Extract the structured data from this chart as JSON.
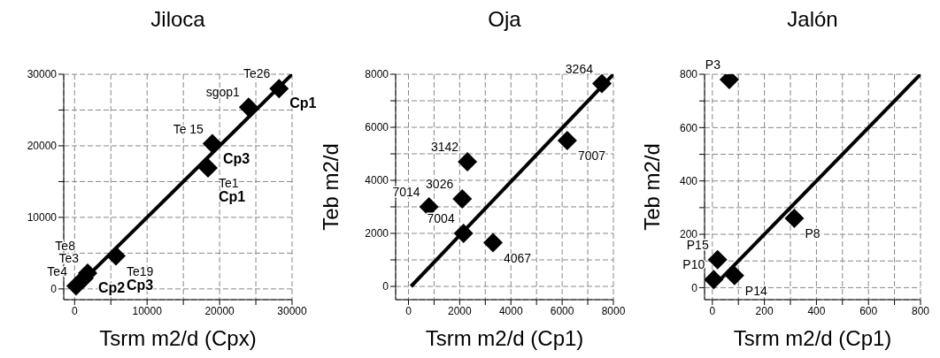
{
  "chart_data": [
    {
      "type": "scatter",
      "title": "Jiloca",
      "xlabel": "Tsrm m2/d (Cpx)",
      "xlim": [
        -1500,
        30000
      ],
      "ylim": [
        -1500,
        30000
      ],
      "xticks": [
        0,
        {
          "value": 5000,
          "label": null
        },
        10000,
        {
          "value": 15000,
          "label": null
        },
        20000,
        {
          "value": 25000,
          "label": null
        },
        30000
      ],
      "yticks": [
        0,
        {
          "value": 5000,
          "label": null
        },
        10000,
        {
          "value": 15000,
          "label": null
        },
        20000,
        {
          "value": 25000,
          "label": null
        },
        30000
      ],
      "grid": true,
      "series": [
        {
          "color": "#000000",
          "marker": "diamond",
          "x": [
            28200,
            24000,
            19000,
            18400,
            5700,
            1800,
            1300,
            200
          ],
          "values": [
            28000,
            25400,
            20300,
            16900,
            4600,
            2200,
            1500,
            400
          ]
        },
        {
          "type": "line",
          "color": "#000000",
          "x": [
            0,
            30000
          ],
          "values": [
            0,
            30000
          ]
        }
      ],
      "annotations": [
        {
          "text": "Te26",
          "x": 28200,
          "y": 28000
        },
        {
          "text": "Cp1",
          "x": 28200,
          "y": 28000
        },
        {
          "text": "sgop1",
          "x": 24000,
          "y": 25400
        },
        {
          "text": "Te 15",
          "x": 19000,
          "y": 20300
        },
        {
          "text": "Cp3",
          "x": 19000,
          "y": 20300
        },
        {
          "text": "Te1",
          "x": 18400,
          "y": 16900
        },
        {
          "text": "Cp1",
          "x": 18400,
          "y": 16900
        },
        {
          "text": "Te19",
          "x": 5700,
          "y": 4600
        },
        {
          "text": "Cp3",
          "x": 5700,
          "y": 4600
        },
        {
          "text": "Te3",
          "x": 1800,
          "y": 2200
        },
        {
          "text": "Cp2",
          "x": 1800,
          "y": 2200
        },
        {
          "text": "Te8",
          "x": 1300,
          "y": 1500
        },
        {
          "text": "Te4",
          "x": 200,
          "y": 400
        }
      ]
    },
    {
      "type": "scatter",
      "title": "Oja",
      "xlabel": "Tsrm m2/d (Cp1)",
      "ylabel": "Teb m2/d",
      "xlim": [
        -500,
        8000
      ],
      "ylim": [
        -500,
        8000
      ],
      "xticks": [
        0,
        {
          "value": 1000,
          "label": null
        },
        2000,
        {
          "value": 3000,
          "label": null
        },
        4000,
        {
          "value": 5000,
          "label": null
        },
        6000,
        {
          "value": 7000,
          "label": null
        },
        8000
      ],
      "yticks": [
        0,
        {
          "value": 1000,
          "label": null
        },
        2000,
        {
          "value": 3000,
          "label": null
        },
        4000,
        {
          "value": 5000,
          "label": null
        },
        6000,
        {
          "value": 7000,
          "label": null
        },
        8000
      ],
      "grid": true,
      "series": [
        {
          "color": "#000000",
          "marker": "diamond",
          "x": [
            7550,
            6200,
            2300,
            800,
            2100,
            2150,
            3300
          ],
          "values": [
            7650,
            5500,
            4700,
            3000,
            3300,
            2000,
            1650
          ]
        },
        {
          "type": "line",
          "color": "#000000",
          "x": [
            100,
            8000
          ],
          "values": [
            0,
            8000
          ]
        }
      ],
      "annotations": [
        {
          "text": "3264",
          "x": 7550,
          "y": 7650
        },
        {
          "text": "7007",
          "x": 6200,
          "y": 5500
        },
        {
          "text": "3142",
          "x": 2300,
          "y": 4700
        },
        {
          "text": "7014",
          "x": 800,
          "y": 3000
        },
        {
          "text": "3026",
          "x": 2100,
          "y": 3300
        },
        {
          "text": "7004",
          "x": 2150,
          "y": 2000
        },
        {
          "text": "4067",
          "x": 3300,
          "y": 1650
        }
      ]
    },
    {
      "type": "scatter",
      "title": "Jalón",
      "xlabel": "Tsrm m2/d (Cp1)",
      "ylabel": "Teb m2/d",
      "xlim": [
        -30,
        800
      ],
      "ylim": [
        -45,
        800
      ],
      "xticks": [
        0,
        {
          "value": 100,
          "label": null
        },
        200,
        {
          "value": 300,
          "label": null
        },
        400,
        {
          "value": 500,
          "label": null
        },
        600,
        {
          "value": 700,
          "label": null
        },
        800
      ],
      "yticks": [
        0,
        {
          "value": 100,
          "label": null
        },
        200,
        {
          "value": 300,
          "label": null
        },
        400,
        {
          "value": 500,
          "label": null
        },
        600,
        {
          "value": 700,
          "label": null
        },
        800
      ],
      "grid": true,
      "series": [
        {
          "color": "#000000",
          "marker": "diamond",
          "x": [
            65,
            315,
            20,
            5,
            85
          ],
          "values": [
            780,
            260,
            105,
            30,
            45
          ]
        },
        {
          "type": "line",
          "color": "#000000",
          "x": [
            0,
            800
          ],
          "values": [
            0,
            800
          ]
        }
      ],
      "annotations": [
        {
          "text": "P3",
          "x": 65,
          "y": 780
        },
        {
          "text": "P8",
          "x": 315,
          "y": 260
        },
        {
          "text": "P15",
          "x": 20,
          "y": 105
        },
        {
          "text": "P10",
          "x": 5,
          "y": 30
        },
        {
          "text": "P14",
          "x": 85,
          "y": 45
        }
      ]
    }
  ]
}
